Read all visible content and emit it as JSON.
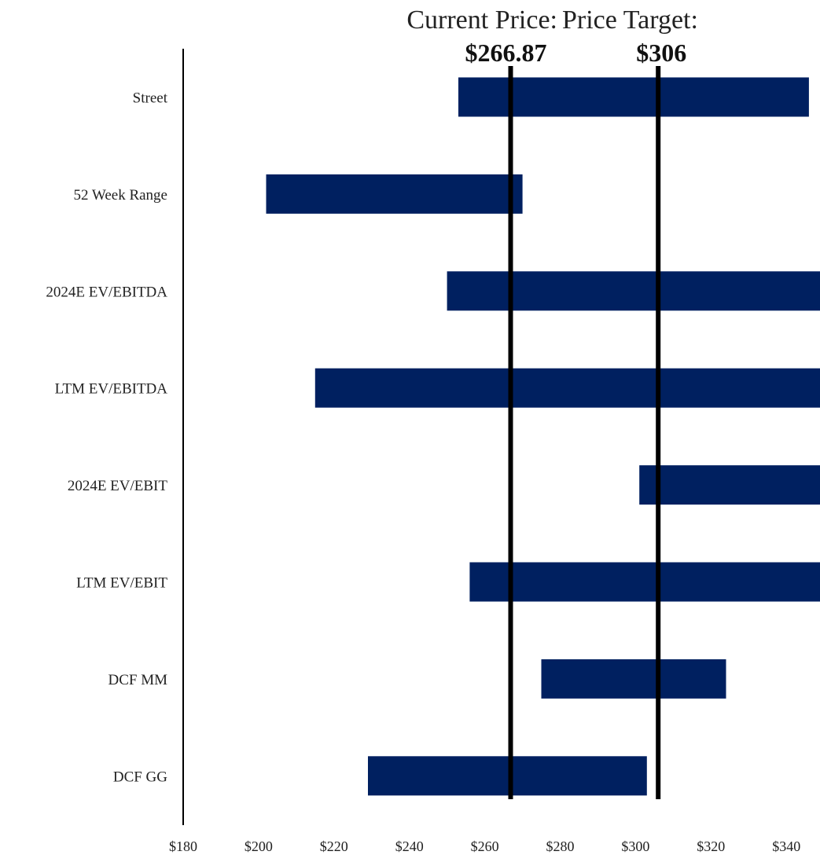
{
  "chart_data": {
    "type": "bar",
    "orientation": "horizontal-floating",
    "title": "",
    "xlabel": "",
    "ylabel": "",
    "xlim": [
      180,
      350
    ],
    "x_ticks": [
      180,
      200,
      220,
      240,
      260,
      280,
      300,
      320,
      340
    ],
    "x_tick_labels": [
      "$180",
      "$200",
      "$220",
      "$240",
      "$260",
      "$280",
      "$300",
      "$320",
      "$340"
    ],
    "grid": false,
    "bar_color": "#002060",
    "categories": [
      "Street",
      "52 Week Range",
      "2024E EV/EBITDA",
      "LTM EV/EBITDA",
      "2024E EV/EBIT",
      "LTM EV/EBIT",
      "DCF MM",
      "DCF GG"
    ],
    "ranges": [
      [
        253,
        346
      ],
      [
        202,
        270
      ],
      [
        250,
        352
      ],
      [
        215,
        352
      ],
      [
        301,
        352
      ],
      [
        256,
        352
      ],
      [
        275,
        324
      ],
      [
        229,
        303
      ]
    ],
    "reference_lines": [
      {
        "title": "Current Price:",
        "value_label": "$266.87",
        "value": 266.87,
        "color": "#000000"
      },
      {
        "title": "Price Target:",
        "value_label": "$306",
        "value": 306,
        "color": "#000000"
      }
    ]
  }
}
